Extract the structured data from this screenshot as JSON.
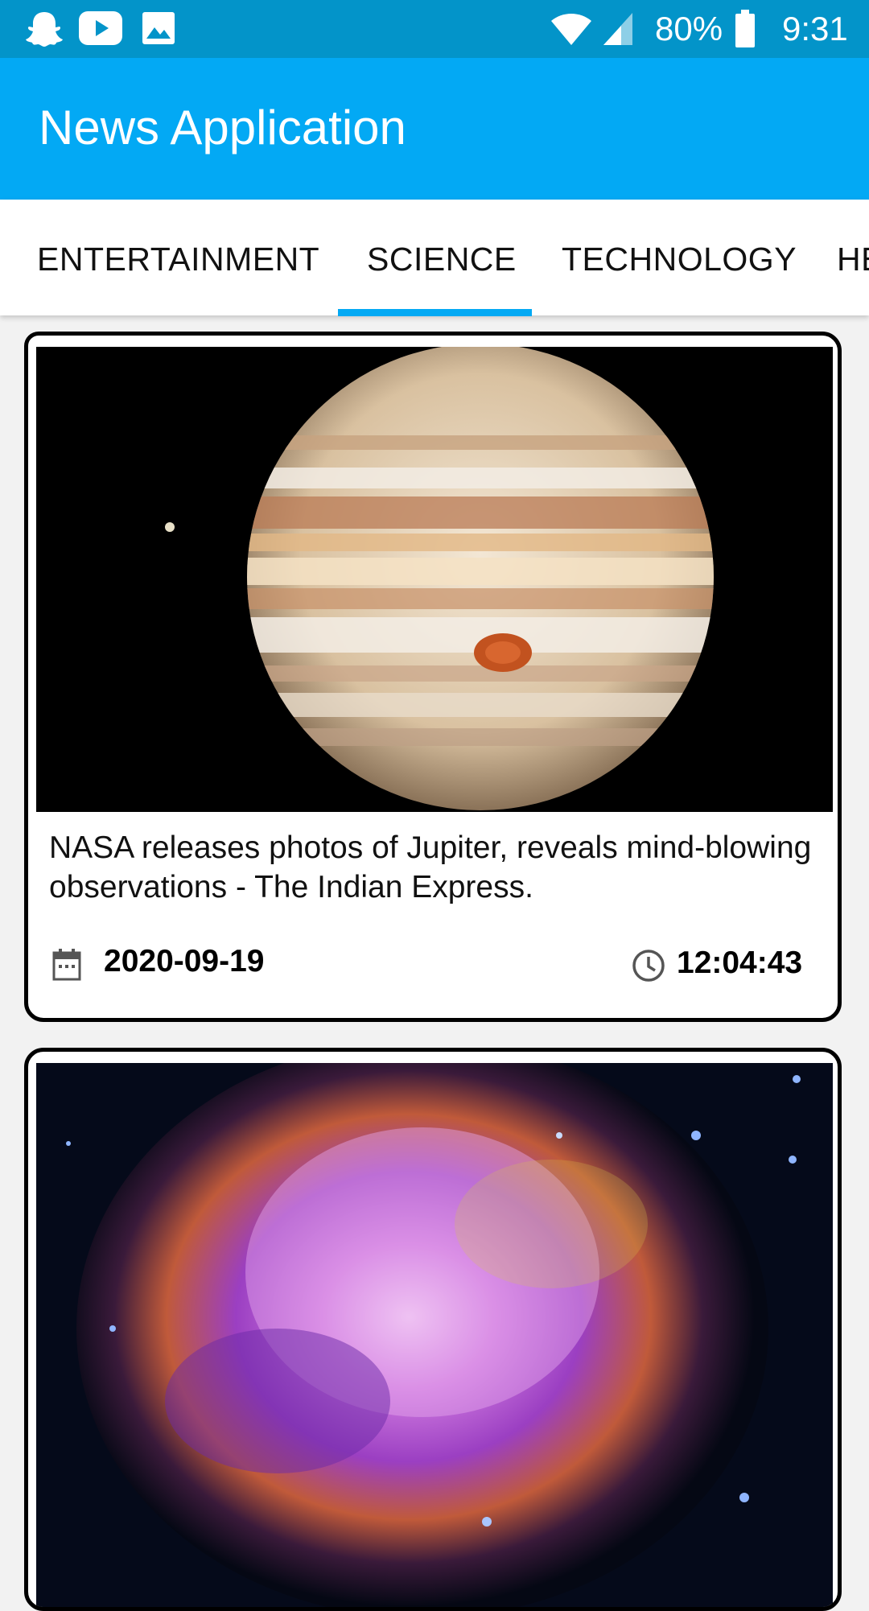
{
  "status_bar": {
    "battery": "80%",
    "time": "9:31",
    "icons": [
      "snapchat-icon",
      "youtube-icon",
      "gallery-icon",
      "wifi-icon",
      "signal-icon",
      "battery-icon"
    ]
  },
  "app_bar": {
    "title": "News Application"
  },
  "tabs": [
    {
      "label": "ENTERTAINMENT"
    },
    {
      "label": "SCIENCE",
      "selected": true
    },
    {
      "label": "TECHNOLOGY"
    },
    {
      "label": "HE"
    }
  ],
  "articles": [
    {
      "title": "NASA releases photos of Jupiter, reveals mind-blowing observations - The Indian Express.",
      "date": "2020-09-19",
      "time": "12:04:43"
    }
  ],
  "colors": {
    "primary": "#03a9f4",
    "status_bar": "#0394c9",
    "accent": "#03a9f4"
  }
}
